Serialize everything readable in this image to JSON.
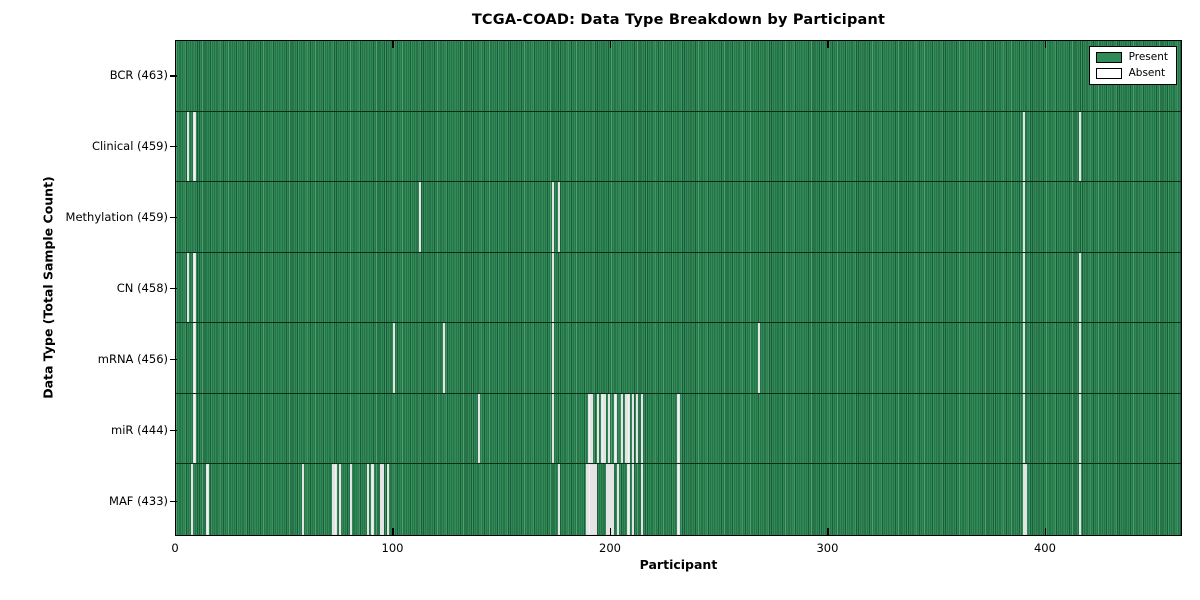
{
  "figure": {
    "title": "TCGA-COAD: Data Type Breakdown by Participant",
    "xlabel": "Participant",
    "ylabel": "Data Type (Total Sample Count)"
  },
  "legend": {
    "present_label": "Present",
    "absent_label": "Absent",
    "present_color": "#2e8b57",
    "absent_color": "#ffffff"
  },
  "chart_data": {
    "type": "heatmap",
    "title": "TCGA-COAD: Data Type Breakdown by Participant",
    "xlabel": "Participant",
    "ylabel": "Data Type (Total Sample Count)",
    "x_range": [
      0,
      463
    ],
    "x_ticks": [
      0,
      100,
      200,
      300,
      400
    ],
    "n_participants": 463,
    "grid": false,
    "legend_position": "upper right",
    "present_color": "#2e8b57",
    "absent_color": "#ffffff",
    "legend": [
      {
        "label": "Present",
        "color": "#2e8b57"
      },
      {
        "label": "Absent",
        "color": "#ffffff"
      }
    ],
    "rows": [
      {
        "label": "BCR (463)",
        "name": "BCR",
        "total": 463,
        "absent_indices": []
      },
      {
        "label": "Clinical (459)",
        "name": "Clinical",
        "total": 459,
        "absent_indices": [
          5,
          8,
          390,
          416
        ]
      },
      {
        "label": "Methylation (459)",
        "name": "Methylation",
        "total": 459,
        "absent_indices": [
          112,
          173,
          176,
          390
        ]
      },
      {
        "label": "CN (458)",
        "name": "CN",
        "total": 458,
        "absent_indices": [
          5,
          8,
          173,
          390,
          416
        ]
      },
      {
        "label": "mRNA (456)",
        "name": "mRNA",
        "total": 456,
        "absent_indices": [
          8,
          100,
          123,
          173,
          268,
          390,
          416
        ]
      },
      {
        "label": "miR (444)",
        "name": "miR",
        "total": 444,
        "absent_indices": [
          8,
          139,
          173,
          190,
          191,
          194,
          196,
          197,
          199,
          202,
          205,
          207,
          208,
          210,
          212,
          214,
          231,
          390,
          416
        ]
      },
      {
        "label": "MAF (433)",
        "name": "MAF",
        "total": 433,
        "absent_indices": [
          7,
          14,
          58,
          72,
          73,
          75,
          80,
          88,
          90,
          94,
          95,
          97,
          176,
          189,
          190,
          191,
          192,
          193,
          198,
          199,
          200,
          201,
          203,
          208,
          210,
          214,
          231,
          390,
          391,
          416
        ]
      }
    ]
  }
}
